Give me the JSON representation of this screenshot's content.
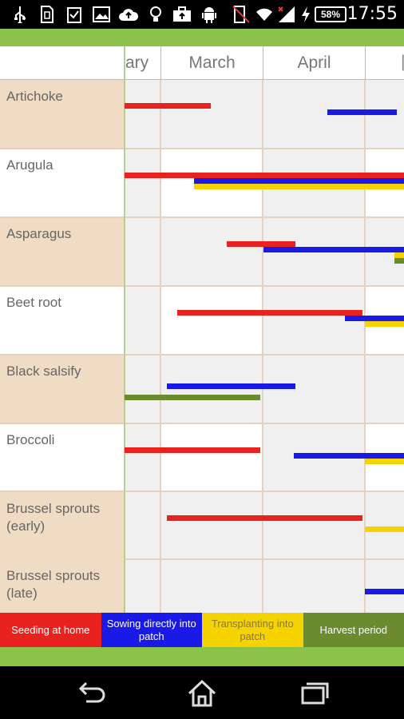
{
  "status_bar": {
    "battery": "58%",
    "time": "17:55",
    "icons": [
      "usb-icon",
      "sim-icon",
      "clipboard-check-icon",
      "image-icon",
      "cloud-upload-icon",
      "bulb-icon",
      "briefcase-upload-icon",
      "android-icon",
      "vibrate-off-icon",
      "wifi-icon",
      "signal-icon",
      "charging-icon"
    ]
  },
  "calendar": {
    "months": [
      "ary",
      "March",
      "April",
      ""
    ],
    "rows": [
      {
        "label": "Artichoke"
      },
      {
        "label": "Arugula"
      },
      {
        "label": "Asparagus"
      },
      {
        "label": "Beet root"
      },
      {
        "label": "Black salsify"
      },
      {
        "label": "Broccoli"
      },
      {
        "label": "Brussel sprouts (early)"
      },
      {
        "label": "Brussel sprouts (late)"
      }
    ]
  },
  "legend": {
    "seeding": "Seeding at home",
    "sowing": "Sowing directly into patch",
    "transplanting": "Transplanting into patch",
    "harvest": "Harvest period"
  },
  "colors": {
    "seeding": "#e8231f",
    "sowing": "#1a1ae6",
    "transplanting": "#f5d300",
    "harvest": "#6b8b2e",
    "band": "#8bc34a",
    "tan": "#f0dcc4"
  },
  "nav": {
    "icons": [
      "back-icon",
      "home-icon",
      "recent-apps-icon"
    ]
  }
}
